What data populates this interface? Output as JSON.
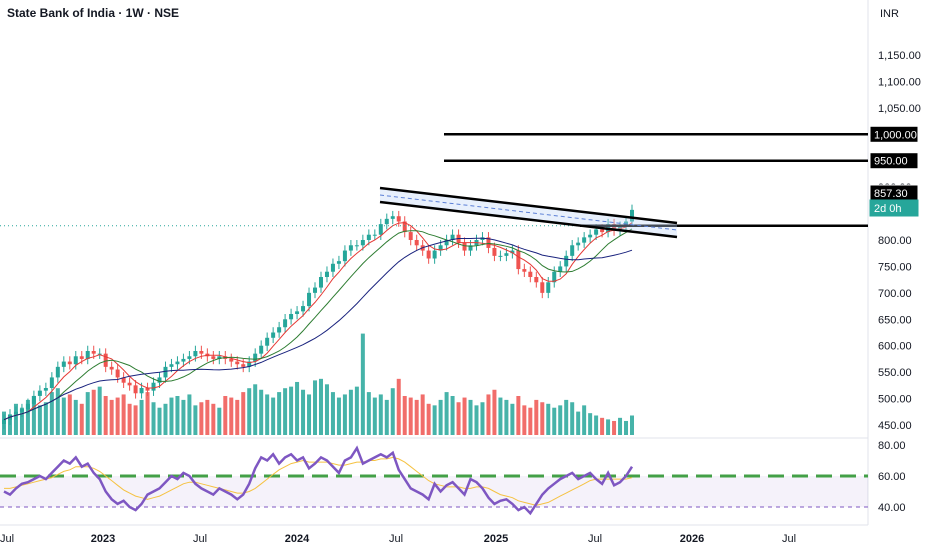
{
  "header": {
    "title": "State Bank of India · 1W · NSE",
    "currency": "INR"
  },
  "colors": {
    "up": "#26a69a",
    "down": "#ef5350",
    "ma_fast": "#e53935",
    "ma_mid": "#2e7d32",
    "ma_slow": "#1a237e",
    "rsi": "#7e57c2",
    "rsi_ma": "#f5c242",
    "level": "#000000",
    "rsi_level": "#43a047"
  },
  "chart_data": [
    {
      "type": "line",
      "name": "price",
      "y_axis": {
        "ticks": [
          450,
          500,
          550,
          600,
          650,
          700,
          750,
          800,
          850,
          900,
          950,
          1000,
          1050,
          1100,
          1150
        ],
        "range": [
          436,
          1180
        ]
      },
      "x_axis": {
        "labels": [
          "Jul",
          "2023",
          "Jul",
          "2024",
          "Jul",
          "2025",
          "Jul",
          "2026",
          "Jul"
        ]
      },
      "close": [
        460,
        470,
        475,
        480,
        490,
        505,
        515,
        520,
        540,
        560,
        570,
        565,
        580,
        575,
        590,
        585,
        585,
        560,
        555,
        540,
        530,
        525,
        510,
        520,
        515,
        530,
        540,
        560,
        565,
        570,
        575,
        580,
        590,
        585,
        580,
        575,
        580,
        575,
        570,
        565,
        560,
        570,
        585,
        600,
        615,
        625,
        635,
        650,
        660,
        665,
        675,
        700,
        710,
        730,
        740,
        755,
        760,
        780,
        790,
        790,
        800,
        810,
        810,
        830,
        840,
        845,
        835,
        815,
        800,
        790,
        780,
        765,
        780,
        790,
        800,
        810,
        795,
        780,
        790,
        800,
        805,
        785,
        770,
        770,
        775,
        780,
        745,
        740,
        730,
        720,
        700,
        720,
        740,
        750,
        770,
        790,
        795,
        805,
        810,
        820,
        815,
        830,
        818,
        825,
        835,
        857
      ],
      "open_high_low_note": "weekly candles; close-to-close series",
      "levels": [
        {
          "label": "1,000.00",
          "value": 1000
        },
        {
          "label": "950.00",
          "value": 950
        },
        {
          "label": "857.30",
          "value": 857.3
        },
        {
          "label": "2d 0h",
          "value": 840
        }
      ],
      "trendline": {
        "from": [
          0,
          893
        ],
        "to": [
          1,
          828
        ]
      },
      "horizontal_line": {
        "value": 857.3
      },
      "volume": [
        30,
        25,
        40,
        35,
        45,
        50,
        38,
        42,
        55,
        60,
        48,
        52,
        45,
        40,
        55,
        58,
        62,
        50,
        45,
        48,
        52,
        40,
        38,
        45,
        55,
        42,
        35,
        40,
        48,
        50,
        45,
        52,
        38,
        42,
        45,
        40,
        35,
        50,
        48,
        45,
        55,
        60,
        65,
        58,
        52,
        48,
        55,
        60,
        62,
        68,
        58,
        52,
        70,
        72,
        65,
        55,
        48,
        52,
        58,
        62,
        130,
        55,
        48,
        52,
        45,
        60,
        72,
        50,
        48,
        45,
        52,
        40,
        38,
        45,
        55,
        50,
        42,
        48,
        45,
        38,
        42,
        52,
        58,
        48,
        45,
        40,
        50,
        38,
        35,
        45,
        42,
        40,
        35,
        38,
        45,
        42,
        30,
        38,
        28,
        25,
        22,
        20,
        18,
        22,
        18,
        25
      ],
      "ma_fast": null
    },
    {
      "type": "line",
      "name": "RSI",
      "y_axis": {
        "ticks": [
          40,
          60,
          80
        ],
        "range": [
          35,
          82
        ]
      },
      "level": 60,
      "values": [
        50,
        48,
        52,
        55,
        56,
        58,
        60,
        58,
        62,
        66,
        70,
        68,
        72,
        66,
        68,
        62,
        58,
        50,
        45,
        42,
        44,
        40,
        38,
        42,
        48,
        50,
        52,
        56,
        60,
        58,
        62,
        60,
        55,
        52,
        50,
        48,
        52,
        50,
        48,
        45,
        48,
        55,
        65,
        72,
        70,
        74,
        68,
        72,
        74,
        70,
        72,
        65,
        68,
        72,
        70,
        66,
        62,
        70,
        72,
        78,
        68,
        70,
        72,
        74,
        72,
        75,
        64,
        58,
        52,
        50,
        48,
        45,
        55,
        50,
        54,
        56,
        52,
        48,
        58,
        56,
        52,
        46,
        42,
        44,
        45,
        42,
        38,
        40,
        36,
        42,
        48,
        52,
        55,
        58,
        60,
        62,
        58,
        60,
        62,
        58,
        55,
        62,
        54,
        56,
        60,
        66
      ],
      "ma": [
        52,
        52,
        53,
        54,
        55,
        56,
        57,
        58,
        59,
        61,
        63,
        64,
        66,
        66,
        66,
        65,
        63,
        60,
        57,
        54,
        51,
        49,
        47,
        46,
        45,
        46,
        47,
        49,
        51,
        53,
        55,
        56,
        56,
        55,
        54,
        53,
        52,
        51,
        50,
        49,
        49,
        50,
        52,
        55,
        58,
        61,
        64,
        66,
        68,
        69,
        70,
        69,
        69,
        69,
        69,
        68,
        67,
        67,
        68,
        69,
        69,
        70,
        70,
        71,
        71,
        72,
        71,
        69,
        66,
        63,
        60,
        57,
        55,
        54,
        53,
        53,
        53,
        52,
        52,
        53,
        53,
        52,
        50,
        48,
        47,
        46,
        44,
        43,
        42,
        41,
        42,
        43,
        45,
        47,
        49,
        51,
        53,
        55,
        57,
        58,
        58,
        58,
        58,
        58,
        58,
        59
      ]
    }
  ]
}
